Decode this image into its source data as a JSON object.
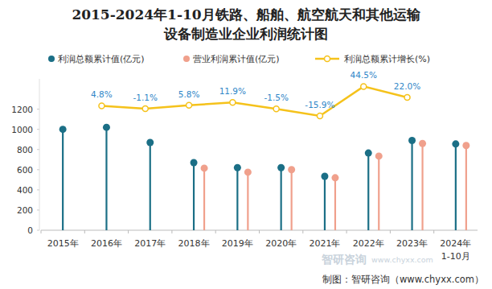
{
  "chart_data": {
    "type": "bar",
    "title": "2015-2024年1-10月铁路、船舶、航空航天和其他运输\n设备制造业企业利润统计图",
    "categories": [
      "2015年",
      "2016年",
      "2017年",
      "2018年",
      "2019年",
      "2020年",
      "2021年",
      "2022年",
      "2023年",
      "2024年\n1-10月"
    ],
    "series": [
      {
        "name": "利润总额累计值(亿元)",
        "type": "bar",
        "marker": "circle",
        "color": "#1b6f86",
        "values": [
          1000,
          1020,
          870,
          670,
          620,
          620,
          535,
          765,
          890,
          855
        ]
      },
      {
        "name": "营业利润累计值(亿元)",
        "type": "bar",
        "marker": "circle",
        "color": "#f0a08c",
        "values": [
          null,
          null,
          null,
          615,
          575,
          600,
          520,
          735,
          860,
          840
        ]
      },
      {
        "name": "利润总额累计增长(%)",
        "type": "line",
        "marker": "circle",
        "color": "#f5c21b",
        "axis": "y2",
        "data_labels": true,
        "values": [
          null,
          4.8,
          -1.1,
          5.8,
          11.9,
          -1.5,
          -15.9,
          44.5,
          22.0,
          null
        ],
        "value_labels": [
          null,
          "4.8%",
          "-1.1%",
          "5.8%",
          "11.9%",
          "-1.5%",
          "-15.9%",
          "44.5%",
          "22.0%",
          null
        ]
      }
    ],
    "ylim": [
      0,
      1500
    ],
    "yticks": [
      0,
      200,
      400,
      600,
      800,
      1000,
      1200
    ],
    "y2lim": [
      -250,
      60
    ],
    "tick_labels": "y",
    "grid": false,
    "legend": "top",
    "annotations": [
      "制图：智研咨询（www.chyxx.com）",
      "智研咨询",
      "www.chyxx.com"
    ]
  }
}
